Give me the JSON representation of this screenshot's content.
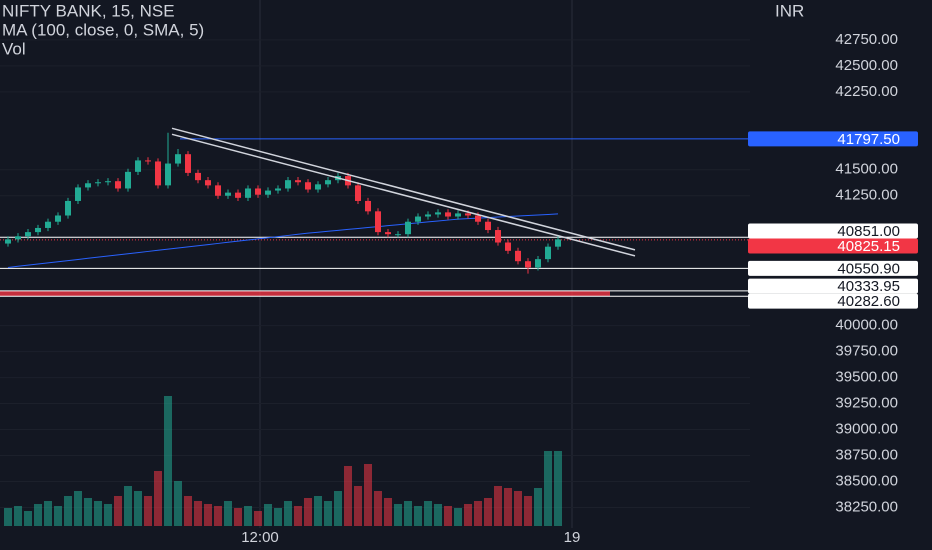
{
  "chart_data": {
    "type": "candlestick",
    "title": "NIFTY BANK, 15, NSE",
    "subtitle": "MA (100, close, 0, SMA, 5)",
    "volume_label": "Vol",
    "currency": "INR",
    "time_labels": [
      "12:00",
      "19"
    ],
    "up_color": "#22ab94",
    "down_color": "#f23645",
    "ma_color": "#2962ff",
    "ylim": [
      38110,
      42980
    ],
    "yticks": [
      {
        "value": 42750,
        "label": "42750.00"
      },
      {
        "value": 42500,
        "label": "42500.00"
      },
      {
        "value": 42250,
        "label": "42250.00"
      },
      {
        "value": 41500,
        "label": "41500.00"
      },
      {
        "value": 41250,
        "label": "41250.00"
      },
      {
        "value": 40000,
        "label": "40000.00"
      },
      {
        "value": 39750,
        "label": "39750.00"
      },
      {
        "value": 39500,
        "label": "39500.00"
      },
      {
        "value": 39250,
        "label": "39250.00"
      },
      {
        "value": 39000,
        "label": "39000.00"
      },
      {
        "value": 38750,
        "label": "38750.00"
      },
      {
        "value": 38500,
        "label": "38500.00"
      },
      {
        "value": 38250,
        "label": "38250.00"
      }
    ],
    "open": [
      40790,
      40830,
      40860,
      40900,
      40940,
      41000,
      41060,
      41200,
      41330,
      41370,
      41380,
      41390,
      41320,
      41480,
      41590,
      41580,
      41350,
      41560,
      41650,
      41470,
      41400,
      41350,
      41250,
      41280,
      41230,
      41320,
      41260,
      41300,
      41320,
      41400,
      41380,
      41310,
      41360,
      41400,
      41440,
      41350,
      41200,
      41100,
      40900,
      40880,
      40880,
      41000,
      41050,
      41070,
      41090,
      41050,
      41080,
      41060,
      41000,
      40920,
      40800,
      40720,
      40620,
      40560,
      40640,
      40760
    ],
    "high": [
      40860,
      40890,
      40930,
      40970,
      41030,
      41090,
      41230,
      41360,
      41400,
      41410,
      41420,
      41420,
      41510,
      41620,
      41620,
      41610,
      41856,
      41700,
      41680,
      41500,
      41430,
      41380,
      41310,
      41310,
      41350,
      41350,
      41330,
      41350,
      41430,
      41430,
      41410,
      41390,
      41430,
      41470,
      41470,
      41380,
      41230,
      41130,
      40930,
      40910,
      41030,
      41080,
      41100,
      41120,
      41120,
      41110,
      41110,
      41090,
      41030,
      40950,
      40830,
      40750,
      40650,
      40670,
      40790,
      40860
    ],
    "low": [
      40760,
      40800,
      40830,
      40870,
      40910,
      40970,
      41030,
      41170,
      41300,
      41340,
      41350,
      41290,
      41290,
      41450,
      41550,
      41320,
      41320,
      41530,
      41440,
      41370,
      41320,
      41220,
      41220,
      41200,
      41200,
      41230,
      41230,
      41270,
      41290,
      41350,
      41280,
      41280,
      41330,
      41370,
      41320,
      41170,
      41070,
      40870,
      40850,
      40850,
      40850,
      40970,
      41020,
      41040,
      41020,
      41020,
      41030,
      40970,
      40890,
      40770,
      40690,
      40590,
      40500,
      40530,
      40610,
      40730
    ],
    "close": [
      40830,
      40860,
      40900,
      40940,
      41000,
      41060,
      41200,
      41330,
      41370,
      41380,
      41390,
      41320,
      41480,
      41590,
      41580,
      41350,
      41560,
      41650,
      41470,
      41400,
      41350,
      41250,
      41280,
      41230,
      41320,
      41260,
      41300,
      41320,
      41400,
      41380,
      41310,
      41360,
      41400,
      41440,
      41350,
      41200,
      41100,
      40900,
      40880,
      40880,
      41000,
      41050,
      41070,
      41090,
      41050,
      41080,
      41060,
      41000,
      40920,
      40800,
      40720,
      40620,
      40560,
      40640,
      40760,
      40830
    ],
    "volume": [
      18,
      20,
      15,
      22,
      25,
      20,
      30,
      35,
      28,
      25,
      22,
      30,
      40,
      35,
      30,
      55,
      130,
      45,
      30,
      25,
      22,
      20,
      25,
      18,
      20,
      15,
      22,
      18,
      25,
      20,
      28,
      30,
      25,
      35,
      60,
      40,
      62,
      35,
      28,
      22,
      25,
      20,
      25,
      22,
      20,
      18,
      22,
      25,
      28,
      40,
      38,
      35,
      30,
      38,
      75,
      75
    ],
    "ma": [
      40560,
      40571,
      40582,
      40593,
      40604,
      40615,
      40626,
      40637,
      40648,
      40659,
      40670,
      40681,
      40692,
      40703,
      40714,
      40725,
      40736,
      40747,
      40758,
      40769,
      40780,
      40791,
      40802,
      40813,
      40824,
      40835,
      40846,
      40857,
      40868,
      40879,
      40890,
      40899,
      40908,
      40917,
      40926,
      40935,
      40944,
      40953,
      40962,
      40971,
      40980,
      40989,
      40998,
      41007,
      41016,
      41025,
      41030,
      41035,
      41040,
      41045,
      41050,
      41055,
      41060,
      41065,
      41070,
      41075
    ],
    "trendline": [
      41870,
      40700
    ],
    "levels": [
      {
        "value": 41797.5,
        "label": "41797.50",
        "color": "#2962ff"
      },
      {
        "value": 40851,
        "label": "40851.00",
        "color": "#ffffff"
      },
      {
        "value": 40825.15,
        "label": "40825.15",
        "color": "#f23645"
      },
      {
        "value": 40550.9,
        "label": "40550.90",
        "color": "#ffffff"
      },
      {
        "value": 40333.95,
        "label": "40333.95",
        "color": "#ffffff"
      },
      {
        "value": 40282.6,
        "label": "40282.60",
        "color": "#ffffff"
      }
    ]
  }
}
